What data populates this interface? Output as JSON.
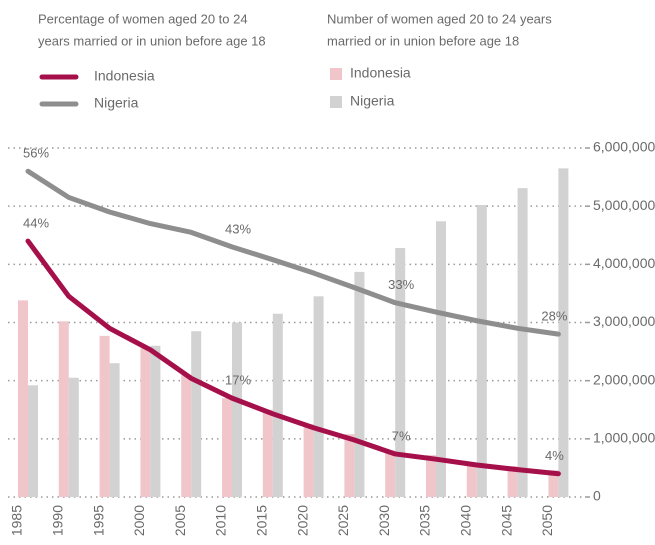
{
  "chart_data": {
    "type": "combo",
    "line_legend_title": [
      "Percentage of women aged 20 to 24",
      "years married or in union before age 18"
    ],
    "bar_legend_title": [
      "Number of women aged 20 to 24 years",
      "married or in union before age 18"
    ],
    "categories": [
      "1985",
      "1990",
      "1995",
      "2000",
      "2005",
      "2010",
      "2015",
      "2020",
      "2025",
      "2030",
      "2035",
      "2040",
      "2045",
      "2050"
    ],
    "series": [
      {
        "name": "Indonesia",
        "type": "bar",
        "axis": "y2",
        "color": "#f1c6ca",
        "values": [
          3380000,
          3020000,
          2770000,
          2560000,
          2100000,
          1700000,
          1500000,
          1250000,
          1080000,
          800000,
          720000,
          580000,
          530000,
          460000
        ]
      },
      {
        "name": "Nigeria",
        "type": "bar",
        "axis": "y2",
        "color": "#d2d2d2",
        "values": [
          1920000,
          2050000,
          2300000,
          2600000,
          2850000,
          3000000,
          3150000,
          3450000,
          3870000,
          4280000,
          4740000,
          5020000,
          5310000,
          5650000
        ]
      },
      {
        "name": "Indonesia",
        "type": "line",
        "axis": "y",
        "color": "#a5104a",
        "values": [
          44,
          34.5,
          29,
          25.3,
          20.4,
          17,
          14.3,
          11.9,
          9.8,
          7.4,
          6.5,
          5.5,
          4.7,
          4
        ],
        "value_labels": [
          "44%",
          null,
          null,
          null,
          null,
          "17%",
          null,
          null,
          null,
          "7%",
          null,
          null,
          null,
          "4%"
        ]
      },
      {
        "name": "Nigeria",
        "type": "line",
        "axis": "y",
        "color": "#8e8e8e",
        "values": [
          56,
          51.5,
          49,
          47,
          45.5,
          43,
          40.8,
          38.5,
          36,
          33.4,
          31.8,
          30.3,
          29,
          28
        ],
        "value_labels": [
          "56%",
          null,
          null,
          null,
          null,
          "43%",
          null,
          null,
          null,
          "33%",
          null,
          null,
          null,
          "28%"
        ]
      }
    ],
    "ylim": [
      0,
      60
    ],
    "y2lim": [
      0,
      6000000
    ],
    "y2ticks": [
      0,
      {
        "value": 1000000,
        "label": "1,000,000"
      },
      {
        "value": 2000000,
        "label": "2,000,000"
      },
      {
        "value": 3000000,
        "label": "3,000,000"
      },
      {
        "value": 4000000,
        "label": "4,000,000"
      },
      {
        "value": 5000000,
        "label": "5,000,000"
      },
      {
        "value": 6000000,
        "label": "6,000,000"
      }
    ],
    "grid": true
  }
}
